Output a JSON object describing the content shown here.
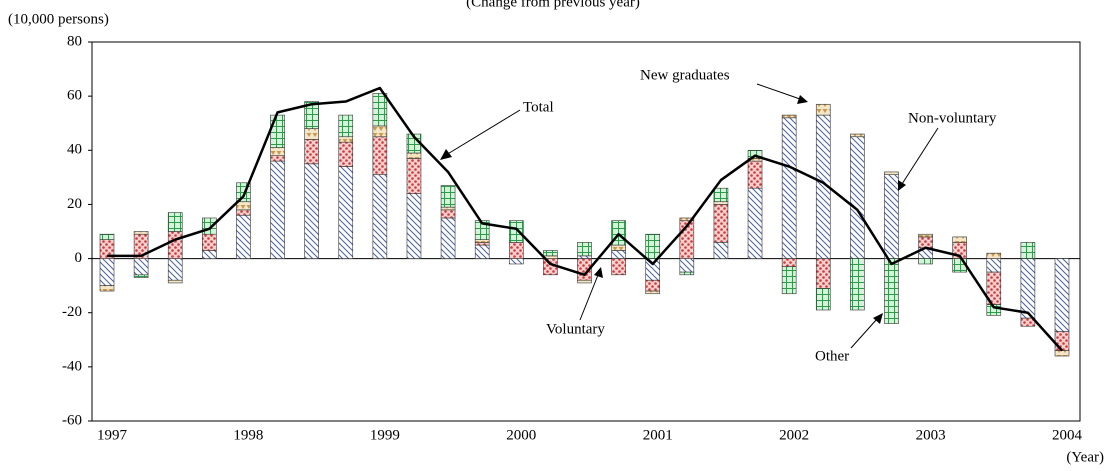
{
  "chart_data": {
    "type": "stacked-bar-line",
    "subtitle": "(Change from previous year)",
    "y_unit_label": "(10,000 persons)",
    "x_unit_label": "(Year)",
    "categories": [
      "1997",
      null,
      null,
      null,
      "1998",
      null,
      null,
      null,
      "1999",
      null,
      null,
      null,
      "2000",
      null,
      null,
      null,
      "2001",
      null,
      null,
      null,
      "2002",
      null,
      null,
      null,
      "2003",
      null,
      null,
      null,
      "2004"
    ],
    "series": [
      {
        "name": "Non-voluntary",
        "color": "#4a5fa8",
        "pattern": "hatch",
        "values": [
          -10,
          -6,
          -8,
          3,
          16,
          36,
          35,
          34,
          31,
          24,
          15,
          5,
          -2,
          0,
          1,
          3,
          -8,
          -5,
          6,
          26,
          52,
          53,
          45,
          31,
          4,
          0,
          -5,
          -22,
          -27
        ]
      },
      {
        "name": "Voluntary",
        "color": "#d03a3a",
        "pattern": "dots",
        "values": [
          7,
          9,
          10,
          6,
          2,
          2,
          9,
          9,
          14,
          13,
          3,
          1,
          6,
          -6,
          -8,
          -6,
          -4,
          14,
          14,
          10,
          -3,
          -11,
          0,
          0,
          4,
          6,
          -12,
          -3,
          -7
        ]
      },
      {
        "name": "New graduates",
        "color": "#c89a50",
        "pattern": "triangles",
        "values": [
          -2,
          1,
          -1,
          0,
          3,
          3,
          4,
          2,
          4,
          2,
          1,
          1,
          0,
          1,
          -1,
          2,
          -1,
          1,
          1,
          1,
          1,
          4,
          1,
          1,
          1,
          2,
          2,
          0,
          -2
        ]
      },
      {
        "name": "Other",
        "color": "#2f9a4a",
        "pattern": "grid",
        "values": [
          2,
          -1,
          7,
          6,
          7,
          12,
          10,
          8,
          12,
          7,
          8,
          7,
          8,
          2,
          5,
          9,
          9,
          -1,
          5,
          3,
          -10,
          -8,
          -19,
          -24,
          -2,
          -5,
          -4,
          6,
          0
        ]
      }
    ],
    "line": {
      "name": "Total",
      "color": "#000000",
      "values": [
        1,
        1,
        7,
        11,
        23,
        54,
        57,
        58,
        63,
        45,
        32,
        13,
        11,
        -2,
        -6,
        9,
        -2,
        12,
        29,
        38,
        34,
        28,
        18,
        -2,
        4,
        1,
        -18,
        -20,
        -34
      ]
    },
    "ylim": [
      -60,
      80
    ],
    "yticks": [
      -60,
      -40,
      -20,
      0,
      20,
      40,
      60,
      80
    ],
    "annotations": [
      "Total",
      "New graduates",
      "Non-voluntary",
      "Voluntary",
      "Other"
    ]
  }
}
